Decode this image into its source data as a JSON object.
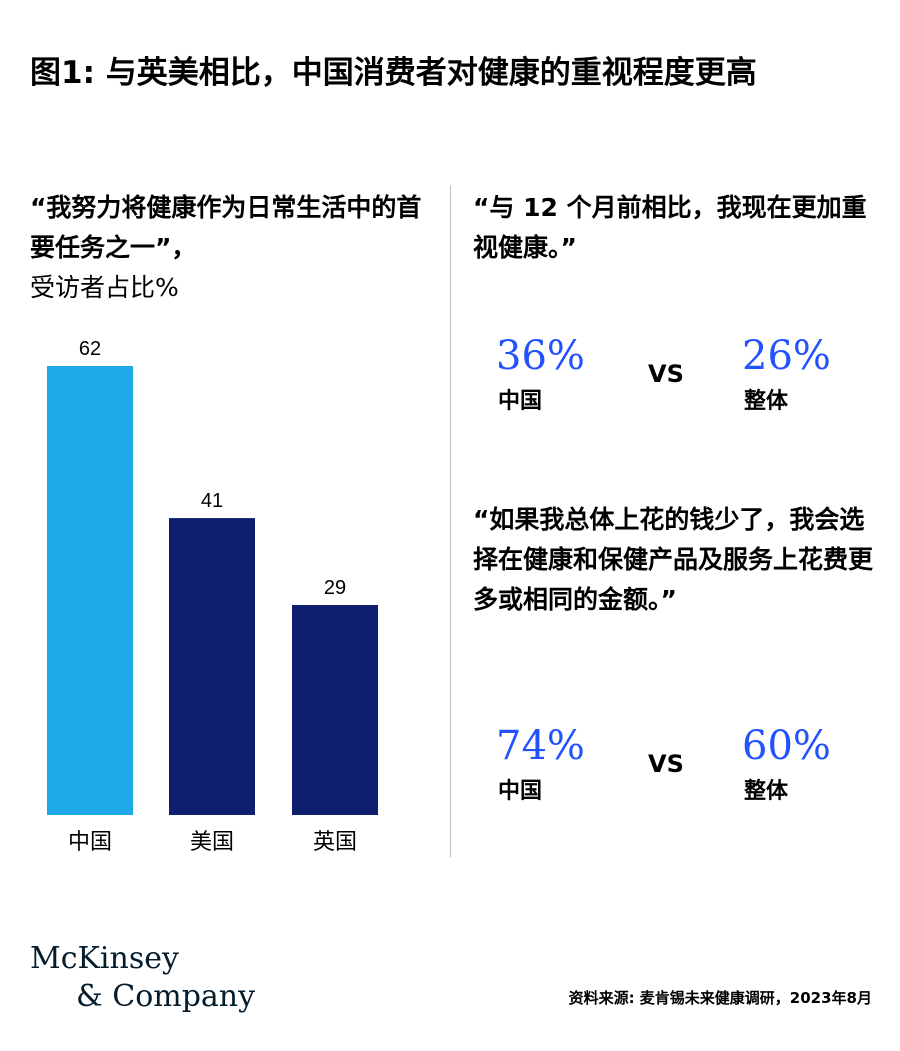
{
  "title": "图1: 与英美相比，中国消费者对健康的重视程度更高",
  "left_panel": {
    "quote": "“我努力将健康作为日常生活中的首要任务之一”，",
    "subtitle": "受访者占比%"
  },
  "chart_data": {
    "type": "bar",
    "categories": [
      "中国",
      "美国",
      "英国"
    ],
    "values": [
      62,
      41,
      29
    ],
    "ylim": [
      0,
      62
    ],
    "title": "“我努力将健康作为日常生活中的首要任务之一”，",
    "ylabel": "受访者占比%",
    "xlabel": "",
    "grid": false,
    "colors": [
      "#1fa8e6",
      "#0f1f6e",
      "#0f1f6e"
    ]
  },
  "right_panel": {
    "quote1": "“与 12 个月前相比，我现在更加重视健康。”",
    "stat1": {
      "left_value": "36%",
      "left_label": "中国",
      "vs": "VS",
      "right_value": "26%",
      "right_label": "整体"
    },
    "quote2": "“如果我总体上花的钱少了，我会选择在健康和保健产品及服务上花费更多或相同的金额。”",
    "stat2": {
      "left_value": "74%",
      "left_label": "中国",
      "vs": "VS",
      "right_value": "60%",
      "right_label": "整体"
    },
    "accent_color": "#2251ff"
  },
  "footer": {
    "logo_line1": "McKinsey",
    "logo_line2": "& Company",
    "source": "资料来源: 麦肯锡未来健康调研，2023年8月"
  }
}
